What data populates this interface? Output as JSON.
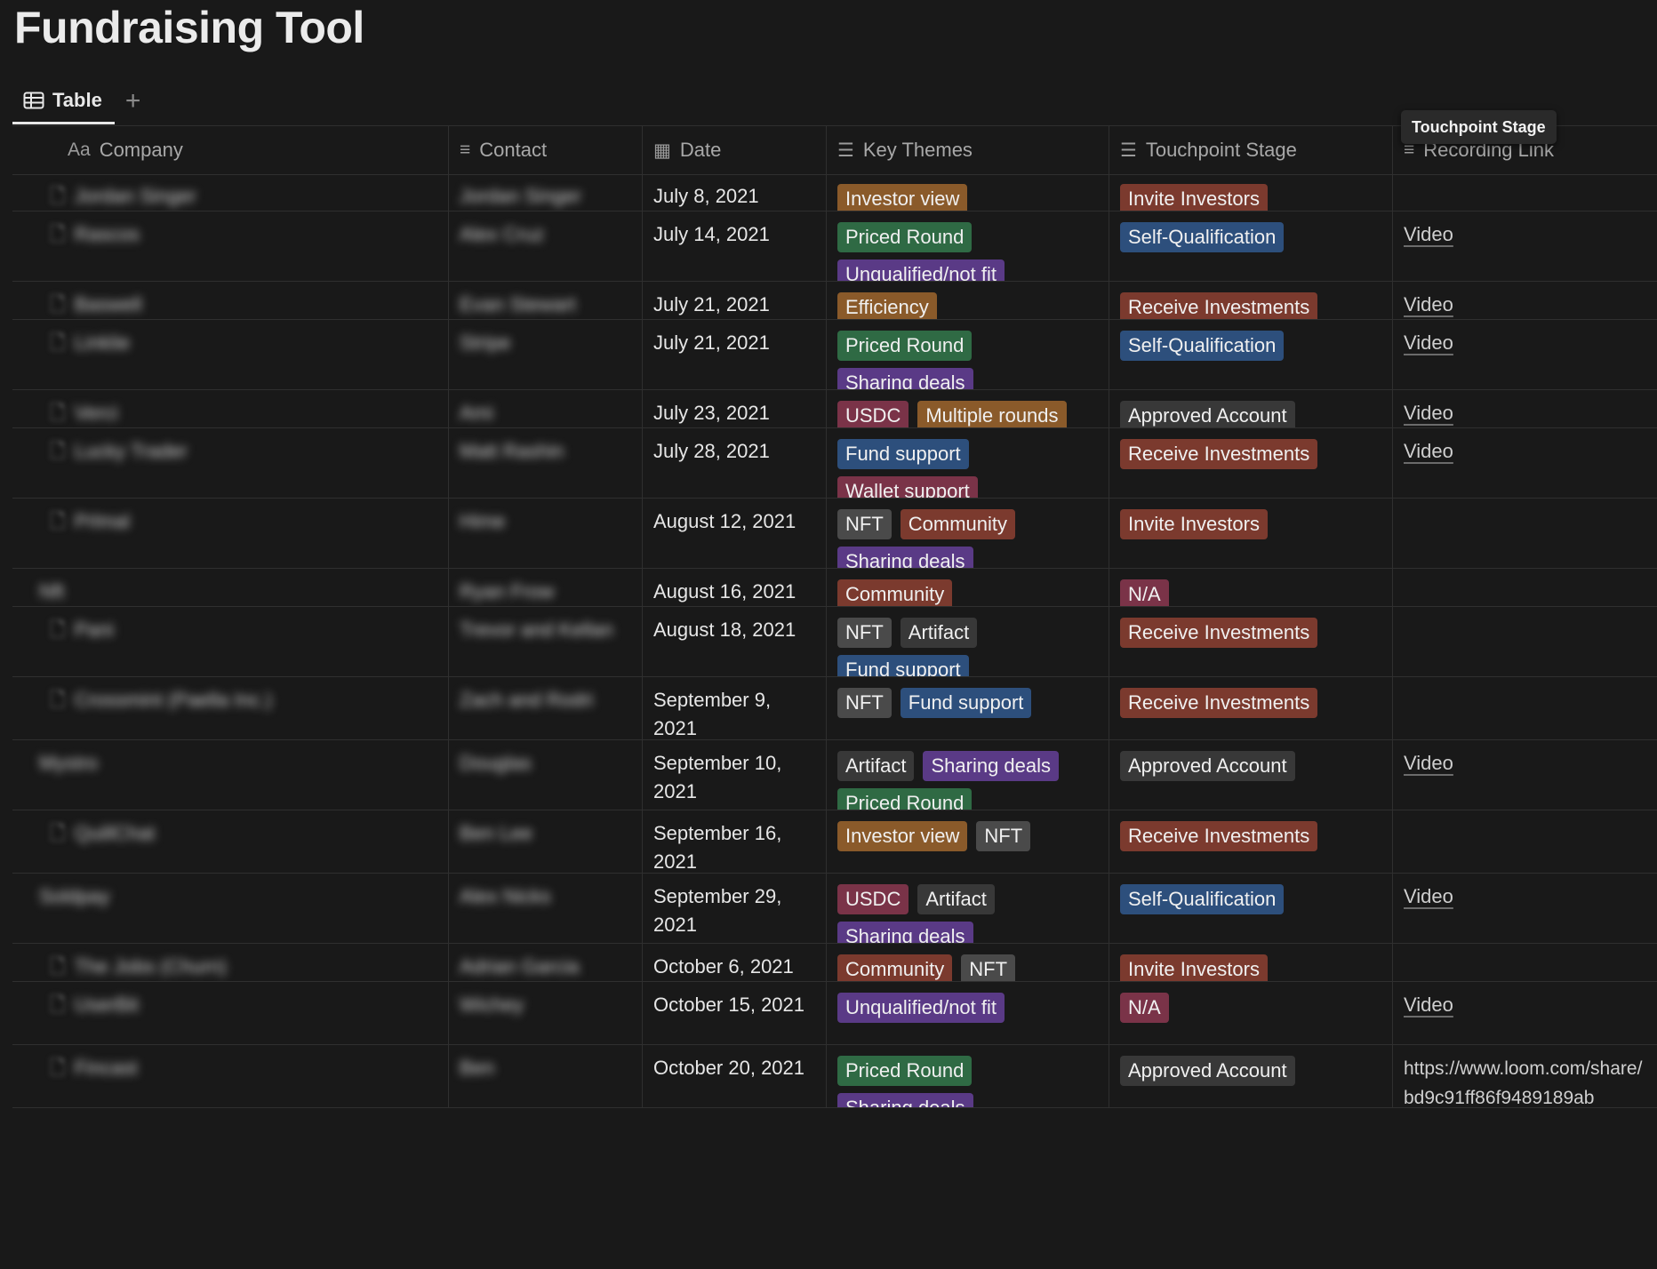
{
  "page": {
    "title": "Fundraising Tool"
  },
  "views": {
    "active_label": "Table",
    "add_symbol": "+"
  },
  "tooltip": {
    "text": "Touchpoint Stage"
  },
  "columns": [
    {
      "icon": "Aa",
      "label": "Company"
    },
    {
      "icon": "≡",
      "label": "Contact"
    },
    {
      "icon": "▦",
      "label": "Date"
    },
    {
      "icon": "☰",
      "label": "Key Themes"
    },
    {
      "icon": "☰",
      "label": "Touchpoint Stage"
    },
    {
      "icon": "≡",
      "label": "Recording Link"
    }
  ],
  "tag_colors": {
    "orange": "#8a5a2a",
    "green": "#2f6a44",
    "purple": "#5a3a86",
    "blue": "#2d4f7c",
    "red": "#7b3a2e",
    "gray": "#4a4a4a",
    "pink": "#7a3348",
    "darkgray": "#383838"
  },
  "rows": [
    {
      "company": "Jordan Singer",
      "contact": "Jordan Singer",
      "page_icon": true,
      "date": "July 8, 2021",
      "themes": [
        {
          "label": "Investor view",
          "color": "orange"
        }
      ],
      "stages": [
        {
          "label": "Invite Investors",
          "color": "red"
        }
      ],
      "link": ""
    },
    {
      "company": "Rascos",
      "contact": "Alex Cruz",
      "page_icon": true,
      "date": "July 14, 2021",
      "themes": [
        {
          "label": "Priced Round",
          "color": "green"
        },
        {
          "label": "Unqualified/not fit",
          "color": "purple"
        }
      ],
      "stages": [
        {
          "label": "Self-Qualification",
          "color": "blue"
        }
      ],
      "link": "Video"
    },
    {
      "company": "Baswell",
      "contact": "Evan Stewart",
      "page_icon": true,
      "date": "July 21, 2021",
      "themes": [
        {
          "label": "Efficiency",
          "color": "orange"
        }
      ],
      "stages": [
        {
          "label": "Receive Investments",
          "color": "red"
        }
      ],
      "link": "Video"
    },
    {
      "company": "Linklie",
      "contact": "Stripe",
      "page_icon": true,
      "date": "July 21, 2021",
      "themes": [
        {
          "label": "Priced Round",
          "color": "green"
        },
        {
          "label": "Sharing deals",
          "color": "purple"
        }
      ],
      "stages": [
        {
          "label": "Self-Qualification",
          "color": "blue"
        }
      ],
      "link": "Video"
    },
    {
      "company": "Verci",
      "contact": "Ami",
      "page_icon": true,
      "date": "July 23, 2021",
      "themes": [
        {
          "label": "USDC",
          "color": "pink"
        },
        {
          "label": "Multiple rounds",
          "color": "orange"
        }
      ],
      "stages": [
        {
          "label": "Approved Account",
          "color": "darkgray"
        }
      ],
      "link": "Video"
    },
    {
      "company": "Lucky Trader",
      "contact": "Matt Rashin",
      "page_icon": true,
      "date": "July 28, 2021",
      "themes": [
        {
          "label": "Fund support",
          "color": "blue"
        },
        {
          "label": "Wallet support",
          "color": "pink"
        }
      ],
      "stages": [
        {
          "label": "Receive Investments",
          "color": "red"
        }
      ],
      "link": "Video"
    },
    {
      "company": "Prlmal",
      "contact": "Hime",
      "page_icon": true,
      "date": "August 12, 2021",
      "themes": [
        {
          "label": "NFT",
          "color": "gray"
        },
        {
          "label": "Community",
          "color": "red"
        },
        {
          "label": "Sharing deals",
          "color": "purple"
        }
      ],
      "stages": [
        {
          "label": "Invite Investors",
          "color": "red"
        }
      ],
      "link": ""
    },
    {
      "company": "Nft",
      "contact": "Ryan Frow",
      "page_icon": false,
      "date": "August 16, 2021",
      "themes": [
        {
          "label": "Community",
          "color": "red"
        }
      ],
      "stages": [
        {
          "label": "N/A",
          "color": "pink"
        }
      ],
      "link": ""
    },
    {
      "company": "Pani",
      "contact": "Trevor and Kellan",
      "page_icon": true,
      "date": "August 18, 2021",
      "themes": [
        {
          "label": "NFT",
          "color": "gray"
        },
        {
          "label": "Artifact",
          "color": "darkgray"
        },
        {
          "label": "Fund support",
          "color": "blue"
        }
      ],
      "stages": [
        {
          "label": "Receive Investments",
          "color": "red"
        }
      ],
      "link": ""
    },
    {
      "company": "Crossmint (Paella Inc.)",
      "contact": "Zach and Rodri",
      "page_icon": true,
      "date": "September 9, 2021",
      "themes": [
        {
          "label": "NFT",
          "color": "gray"
        },
        {
          "label": "Fund support",
          "color": "blue"
        }
      ],
      "stages": [
        {
          "label": "Receive Investments",
          "color": "red"
        }
      ],
      "link": ""
    },
    {
      "company": "Mystro",
      "contact": "Douglas",
      "page_icon": false,
      "date": "September 10, 2021",
      "themes": [
        {
          "label": "Artifact",
          "color": "darkgray"
        },
        {
          "label": "Sharing deals",
          "color": "purple"
        },
        {
          "label": "Priced Round",
          "color": "green"
        }
      ],
      "stages": [
        {
          "label": "Approved Account",
          "color": "darkgray"
        }
      ],
      "link": "Video"
    },
    {
      "company": "QuillChat",
      "contact": "Ben Lee",
      "page_icon": true,
      "date": "September 16, 2021",
      "themes": [
        {
          "label": "Investor view",
          "color": "orange"
        },
        {
          "label": "NFT",
          "color": "gray"
        }
      ],
      "stages": [
        {
          "label": "Receive Investments",
          "color": "red"
        }
      ],
      "link": ""
    },
    {
      "company": "Soldpay",
      "contact": "Alex Nicks",
      "page_icon": false,
      "date": "September 29, 2021",
      "themes": [
        {
          "label": "USDC",
          "color": "pink"
        },
        {
          "label": "Artifact",
          "color": "darkgray"
        },
        {
          "label": "Sharing deals",
          "color": "purple"
        }
      ],
      "stages": [
        {
          "label": "Self-Qualification",
          "color": "blue"
        }
      ],
      "link": "Video"
    },
    {
      "company": "The Jobs (Churn)",
      "contact": "Adrian Garcia",
      "page_icon": true,
      "date": "October 6, 2021",
      "themes": [
        {
          "label": "Community",
          "color": "red"
        },
        {
          "label": "NFT",
          "color": "gray"
        }
      ],
      "stages": [
        {
          "label": "Invite Investors",
          "color": "red"
        }
      ],
      "link": ""
    },
    {
      "company": "UserBit",
      "contact": "Wichey",
      "page_icon": true,
      "date": "October 15, 2021",
      "themes": [
        {
          "label": "Unqualified/not fit",
          "color": "purple"
        }
      ],
      "stages": [
        {
          "label": "N/A",
          "color": "pink"
        }
      ],
      "link": "Video"
    },
    {
      "company": "Fincast",
      "contact": "Ben",
      "page_icon": true,
      "date": "October 20, 2021",
      "themes": [
        {
          "label": "Priced Round",
          "color": "green"
        },
        {
          "label": "Sharing deals",
          "color": "purple"
        }
      ],
      "stages": [
        {
          "label": "Approved Account",
          "color": "darkgray"
        }
      ],
      "link": "https://www.loom.com/share/bd9c91ff86f9489189ab"
    }
  ]
}
